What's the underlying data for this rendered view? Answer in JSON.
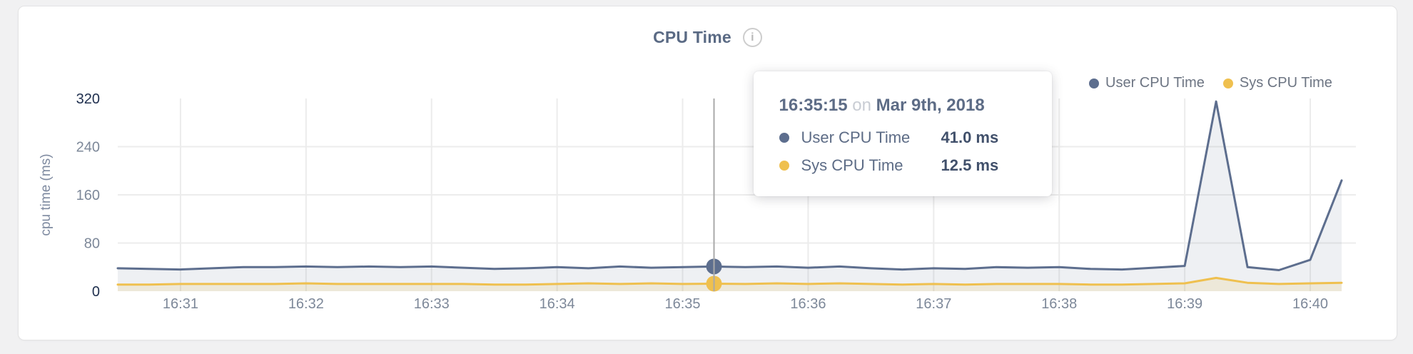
{
  "card": {
    "title": "CPU Time",
    "info_icon_glyph": "i"
  },
  "legend": [
    {
      "label": "User CPU Time",
      "color": "#5d6e8e"
    },
    {
      "label": "Sys CPU Time",
      "color": "#efc04f"
    }
  ],
  "tooltip": {
    "time": "16:35:15",
    "connector": "on",
    "date": "Mar 9th, 2018",
    "rows": [
      {
        "label": "User CPU Time",
        "value": "41.0 ms",
        "color": "#5d6e8e"
      },
      {
        "label": "Sys CPU Time",
        "value": "12.5 ms",
        "color": "#efc04f"
      }
    ]
  },
  "chart_data": {
    "type": "area",
    "title": "CPU Time",
    "xlabel": "",
    "ylabel": "cpu time (ms)",
    "ylim": [
      0,
      320
    ],
    "yticks": [
      0,
      80,
      160,
      240,
      320
    ],
    "grid": true,
    "legend_position": "top-right",
    "x_start_time": "16:30:30",
    "x_step_seconds": 15,
    "xticks": [
      {
        "label": "16:31",
        "index": 2
      },
      {
        "label": "16:32",
        "index": 6
      },
      {
        "label": "16:33",
        "index": 10
      },
      {
        "label": "16:34",
        "index": 14
      },
      {
        "label": "16:35",
        "index": 18
      },
      {
        "label": "16:36",
        "index": 22
      },
      {
        "label": "16:37",
        "index": 26
      },
      {
        "label": "16:38",
        "index": 30
      },
      {
        "label": "16:39",
        "index": 34
      },
      {
        "label": "16:40",
        "index": 38
      }
    ],
    "series": [
      {
        "name": "User CPU Time",
        "color": "#5d6e8e",
        "fill": "rgba(93,110,142,0.10)",
        "values": [
          38,
          37,
          36,
          38,
          40,
          40,
          41,
          40,
          41,
          40,
          41,
          39,
          37,
          38,
          40,
          38,
          41,
          39,
          40,
          41,
          40,
          41,
          39,
          41,
          38,
          36,
          38,
          37,
          40,
          39,
          40,
          37,
          36,
          39,
          42,
          315,
          40,
          35,
          52,
          184
        ]
      },
      {
        "name": "Sys CPU Time",
        "color": "#efc04f",
        "fill": "rgba(239,192,79,0.16)",
        "values": [
          11,
          11,
          12,
          12,
          12,
          12,
          13,
          12,
          12,
          12,
          12,
          12,
          11,
          11,
          12,
          13,
          12,
          13,
          12,
          12.5,
          12,
          13,
          12,
          13,
          12,
          11,
          12,
          11,
          12,
          12,
          12,
          11,
          11,
          12,
          13,
          22,
          14,
          12,
          13,
          14
        ]
      }
    ],
    "hover": {
      "index": 19,
      "time": "16:35:15",
      "values": [
        41.0,
        12.5
      ]
    }
  },
  "colors": {
    "grid": "#ececec",
    "hover_line": "#a9a9a9",
    "tick_label": "#7d8899",
    "tick_label_bounds": "#20304f",
    "axis_title": "#7e8aa0"
  }
}
